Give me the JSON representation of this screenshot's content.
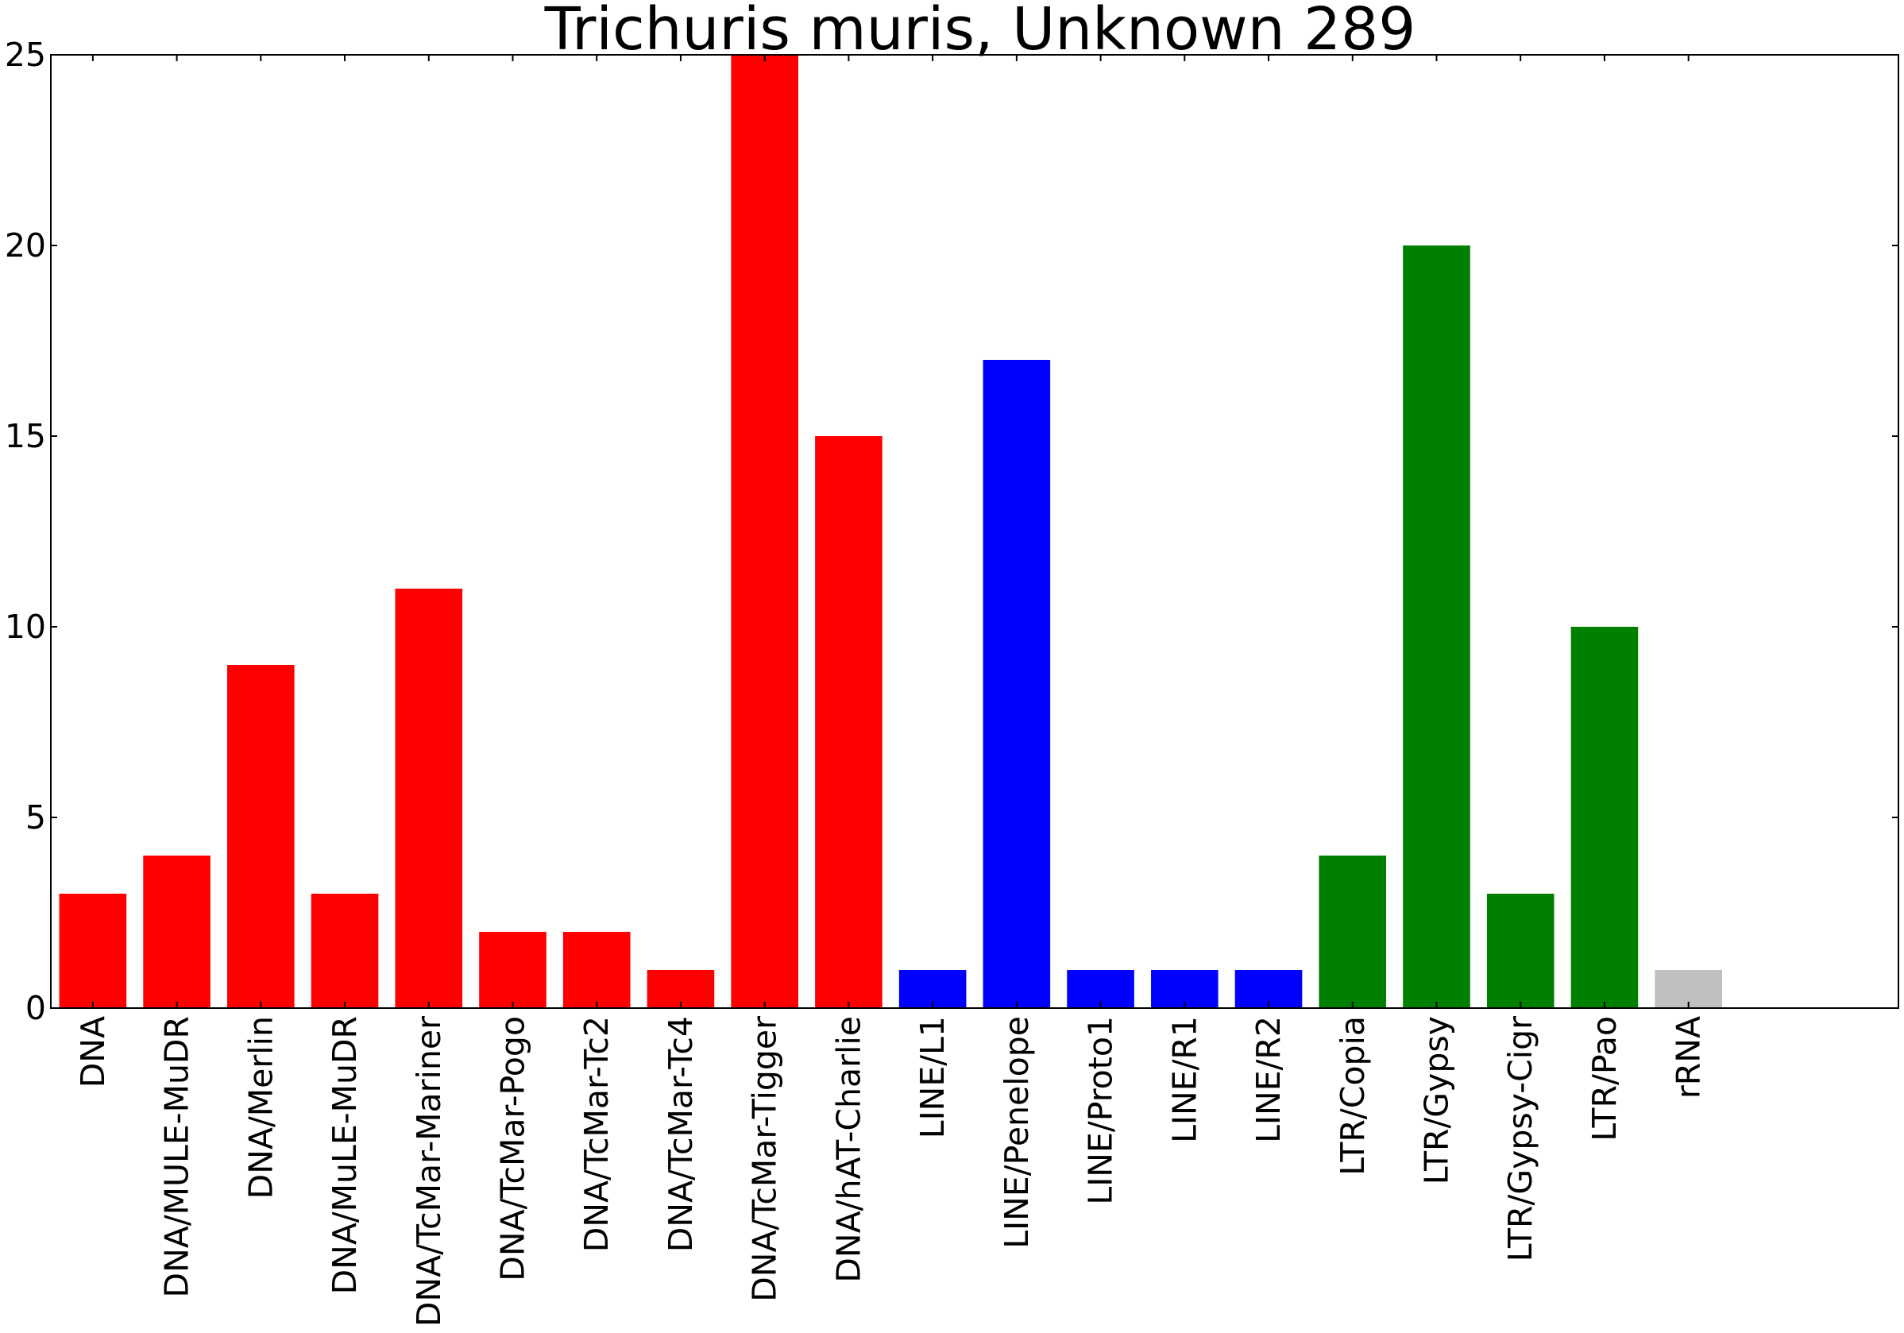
{
  "chart_data": {
    "type": "bar",
    "title": "Trichuris muris, Unknown 289",
    "xlabel": "",
    "ylabel": "",
    "ylim": [
      0,
      25
    ],
    "xlim": [
      0,
      22
    ],
    "yticks": [
      "0",
      "5",
      "10",
      "15",
      "20",
      "25"
    ],
    "grid": false,
    "legend": "none",
    "categories": [
      "DNA",
      "DNA/MULE-MuDR",
      "DNA/Merlin",
      "DNA/MuLE-MuDR",
      "DNA/TcMar-Mariner",
      "DNA/TcMar-Pogo",
      "DNA/TcMar-Tc2",
      "DNA/TcMar-Tc4",
      "DNA/TcMar-Tigger",
      "DNA/hAT-Charlie",
      "LINE/L1",
      "LINE/Penelope",
      "LINE/Proto1",
      "LINE/R1",
      "LINE/R2",
      "LTR/Copia",
      "LTR/Gypsy",
      "LTR/Gypsy-Cigr",
      "LTR/Pao",
      "rRNA"
    ],
    "values": [
      3,
      4,
      9,
      3,
      11,
      2,
      2,
      1,
      25,
      15,
      1,
      17,
      1,
      1,
      1,
      4,
      20,
      3,
      10,
      1
    ],
    "colors": [
      "#ff0000",
      "#ff0000",
      "#ff0000",
      "#ff0000",
      "#ff0000",
      "#ff0000",
      "#ff0000",
      "#ff0000",
      "#ff0000",
      "#ff0000",
      "#0000ff",
      "#0000ff",
      "#0000ff",
      "#0000ff",
      "#0000ff",
      "#008000",
      "#008000",
      "#008000",
      "#008000",
      "#c0c0c0"
    ]
  }
}
